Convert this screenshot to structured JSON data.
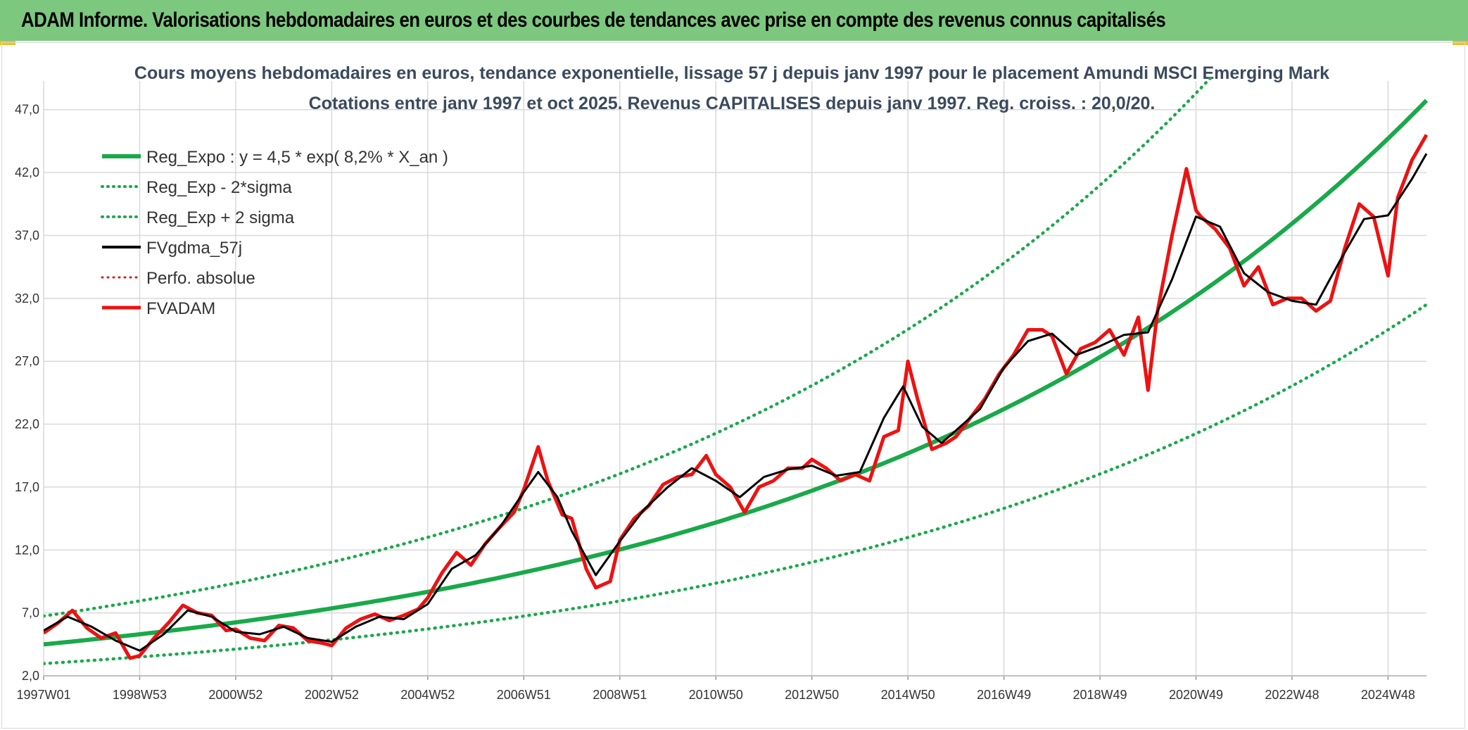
{
  "header": {
    "title": "ADAM Informe. Valorisations hebdomadaires en euros et des courbes de tendances avec prise en compte des revenus connus capitalisés"
  },
  "colors": {
    "header_bg": "#7cc87e",
    "accent_corner": "#f2c11a",
    "trend_green": "#19a94a",
    "fvadam_red": "#ee1111",
    "gdma_black": "#000000",
    "grid": "#d9d9d9"
  },
  "chart_data": {
    "type": "line",
    "title_line1": "Cours moyens hebdomadaires en euros, tendance exponentielle, lissage 57 j depuis janv 1997 pour le placement Amundi MSCI Emerging Mark",
    "title_line2": "Cotations entre janv 1997 et oct 2025. Revenus CAPITALISES depuis janv 1997. Reg. croiss. : 20,0/20.",
    "xlabel": "",
    "ylabel": "",
    "x_range": [
      1997.0,
      2025.8
    ],
    "ylim": [
      2.0,
      49.0
    ],
    "y_ticks": [
      2.0,
      7.0,
      12.0,
      17.0,
      22.0,
      27.0,
      32.0,
      37.0,
      42.0,
      47.0
    ],
    "y_tick_labels": [
      "2,0",
      "7,0",
      "12,0",
      "17,0",
      "22,0",
      "27,0",
      "32,0",
      "37,0",
      "42,0",
      "47,0"
    ],
    "x_ticks": [
      1997.0,
      1999.0,
      2001.0,
      2003.0,
      2005.0,
      2007.0,
      2009.0,
      2011.0,
      2013.0,
      2015.0,
      2017.0,
      2019.0,
      2021.0,
      2023.0,
      2025.0
    ],
    "x_tick_labels": [
      "1997W01",
      "1998W53",
      "2000W52",
      "2002W52",
      "2004W52",
      "2006W51",
      "2008W51",
      "2010W50",
      "2012W50",
      "2014W50",
      "2016W49",
      "2018W49",
      "2020W49",
      "2022W48",
      "2024W48"
    ],
    "legend": [
      {
        "label": "Reg_Expo : y = 4,5 * exp( 8,2% *  X_an )",
        "color": "#19a94a",
        "style": "solid",
        "width": 6
      },
      {
        "label": "Reg_Exp - 2*sigma",
        "color": "#19a94a",
        "style": "dotted",
        "width": 4
      },
      {
        "label": "Reg_Exp + 2 sigma",
        "color": "#19a94a",
        "style": "dotted",
        "width": 4
      },
      {
        "label": "FVgdma_57j",
        "color": "#000000",
        "style": "solid",
        "width": 4
      },
      {
        "label": "Perfo. absolue",
        "color": "#ee1111",
        "style": "dotted",
        "width": 3
      },
      {
        "label": "FVADAM",
        "color": "#ee1111",
        "style": "solid",
        "width": 5
      }
    ],
    "trend": {
      "a": 4.5,
      "rate": 0.082,
      "start_year": 1997.0,
      "lower_factor": 0.66,
      "upper_factor": 1.5
    },
    "fvadam": {
      "x": [
        1997.0,
        1997.3,
        1997.6,
        1997.9,
        1998.2,
        1998.5,
        1998.8,
        1999.0,
        1999.3,
        1999.6,
        1999.9,
        2000.2,
        2000.5,
        2000.8,
        2001.0,
        2001.3,
        2001.6,
        2001.9,
        2002.2,
        2002.5,
        2002.8,
        2003.0,
        2003.3,
        2003.6,
        2003.9,
        2004.2,
        2004.5,
        2004.8,
        2005.0,
        2005.3,
        2005.6,
        2005.9,
        2006.2,
        2006.5,
        2006.8,
        2007.0,
        2007.3,
        2007.5,
        2007.8,
        2008.0,
        2008.3,
        2008.5,
        2008.8,
        2009.0,
        2009.3,
        2009.6,
        2009.9,
        2010.2,
        2010.5,
        2010.8,
        2011.0,
        2011.3,
        2011.6,
        2011.9,
        2012.2,
        2012.5,
        2012.8,
        2013.0,
        2013.3,
        2013.6,
        2013.9,
        2014.2,
        2014.5,
        2014.8,
        2015.0,
        2015.2,
        2015.5,
        2015.8,
        2016.0,
        2016.3,
        2016.6,
        2016.9,
        2017.2,
        2017.5,
        2017.8,
        2018.0,
        2018.3,
        2018.6,
        2018.9,
        2019.2,
        2019.5,
        2019.8,
        2020.0,
        2020.2,
        2020.5,
        2020.8,
        2021.0,
        2021.1,
        2021.4,
        2021.7,
        2022.0,
        2022.3,
        2022.6,
        2022.9,
        2023.2,
        2023.5,
        2023.8,
        2024.1,
        2024.4,
        2024.7,
        2025.0,
        2025.2,
        2025.5,
        2025.8
      ],
      "y": [
        5.4,
        6.2,
        7.2,
        5.8,
        5.0,
        5.4,
        3.4,
        3.6,
        5.0,
        6.2,
        7.6,
        7.0,
        6.8,
        5.6,
        5.7,
        5.0,
        4.8,
        6.0,
        5.8,
        4.8,
        4.6,
        4.4,
        5.8,
        6.5,
        6.9,
        6.4,
        6.8,
        7.3,
        8.2,
        10.2,
        11.8,
        10.8,
        12.5,
        13.8,
        15.0,
        16.8,
        20.2,
        17.5,
        14.8,
        14.5,
        10.5,
        9.0,
        9.5,
        12.8,
        14.5,
        15.5,
        17.2,
        17.8,
        18.0,
        19.5,
        18.0,
        17.0,
        15.0,
        17.0,
        17.5,
        18.5,
        18.5,
        19.2,
        18.5,
        17.5,
        18.0,
        17.5,
        21.0,
        21.5,
        27.0,
        24.0,
        20.0,
        20.5,
        21.0,
        22.5,
        24.0,
        26.0,
        27.5,
        29.5,
        29.5,
        29.0,
        26.0,
        28.0,
        28.5,
        29.5,
        27.5,
        30.5,
        24.7,
        31.0,
        37.0,
        42.3,
        39.0,
        38.5,
        37.5,
        36.0,
        33.0,
        34.5,
        31.5,
        32.0,
        32.0,
        31.0,
        31.8,
        36.0,
        39.5,
        38.5,
        33.8,
        40.0,
        43.0,
        45.0
      ]
    },
    "fvgdma": {
      "x": [
        1997.0,
        1997.5,
        1998.0,
        1998.5,
        1999.0,
        1999.5,
        2000.0,
        2000.5,
        2001.0,
        2001.5,
        2002.0,
        2002.5,
        2003.0,
        2003.5,
        2004.0,
        2004.5,
        2005.0,
        2005.5,
        2006.0,
        2006.5,
        2007.0,
        2007.3,
        2007.7,
        2008.0,
        2008.5,
        2009.0,
        2009.5,
        2010.0,
        2010.5,
        2011.0,
        2011.5,
        2012.0,
        2012.5,
        2013.0,
        2013.5,
        2014.0,
        2014.5,
        2014.9,
        2015.3,
        2015.7,
        2016.0,
        2016.5,
        2017.0,
        2017.5,
        2018.0,
        2018.5,
        2019.0,
        2019.5,
        2020.0,
        2020.5,
        2021.0,
        2021.5,
        2022.0,
        2022.5,
        2023.0,
        2023.5,
        2024.0,
        2024.5,
        2025.0,
        2025.5,
        2025.8
      ],
      "y": [
        5.6,
        6.7,
        5.9,
        4.8,
        4.0,
        5.3,
        7.2,
        6.7,
        5.5,
        5.3,
        5.9,
        5.0,
        4.7,
        5.9,
        6.7,
        6.5,
        7.7,
        10.5,
        11.6,
        13.8,
        16.6,
        18.2,
        16.2,
        13.5,
        10.0,
        12.7,
        15.2,
        17.0,
        18.5,
        17.5,
        16.2,
        17.8,
        18.4,
        18.7,
        17.9,
        18.2,
        22.5,
        25.0,
        21.8,
        20.5,
        21.5,
        23.2,
        26.5,
        28.6,
        29.2,
        27.5,
        28.2,
        29.1,
        29.3,
        33.5,
        38.5,
        37.7,
        34.0,
        32.5,
        31.8,
        31.5,
        35.0,
        38.3,
        38.6,
        41.5,
        43.5
      ]
    }
  }
}
